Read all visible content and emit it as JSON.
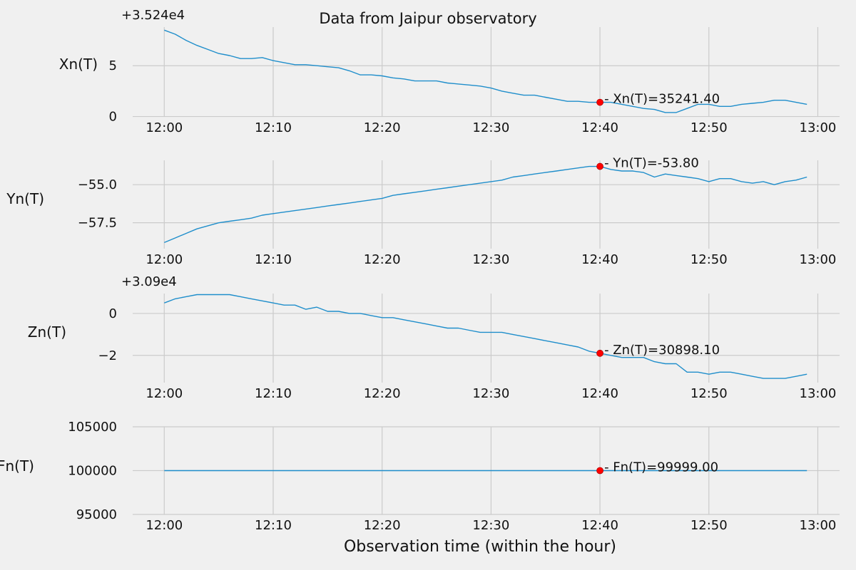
{
  "chart_data": {
    "type": "line",
    "title": "Data from  Jaipur observatory",
    "xlabel": "Observation time (within the hour)",
    "x_ticks": [
      "12:00",
      "12:10",
      "12:20",
      "12:30",
      "12:40",
      "12:50",
      "13:00"
    ],
    "x_minutes": [
      0,
      1,
      2,
      3,
      4,
      5,
      6,
      7,
      8,
      9,
      10,
      11,
      12,
      13,
      14,
      15,
      16,
      17,
      18,
      19,
      20,
      21,
      22,
      23,
      24,
      25,
      26,
      27,
      28,
      29,
      30,
      31,
      32,
      33,
      34,
      35,
      36,
      37,
      38,
      39,
      40,
      41,
      42,
      43,
      44,
      45,
      46,
      47,
      48,
      49,
      50,
      51,
      52,
      53,
      54,
      55,
      56,
      57,
      58,
      59
    ],
    "xlim_minutes": [
      -2.9,
      62
    ],
    "grid": true,
    "colors": {
      "line": "#1f8ecb",
      "marker": "#ff0000",
      "grid": "#cbcbcb",
      "background": "#f0f0f0"
    },
    "panels": [
      {
        "ylabel": "Xn(T)",
        "offset_text": "+3.524e4",
        "offset": 35240,
        "y_ticks": [
          0,
          5
        ],
        "y_tick_labels": [
          "0",
          "5"
        ],
        "ylim": [
          -0.03,
          8.8
        ],
        "values": [
          35248.5,
          35248.1,
          35247.5,
          35247.0,
          35246.6,
          35246.2,
          35246.0,
          35245.7,
          35245.7,
          35245.8,
          35245.5,
          35245.3,
          35245.1,
          35245.1,
          35245.0,
          35244.9,
          35244.8,
          35244.5,
          35244.1,
          35244.1,
          35244.0,
          35243.8,
          35243.7,
          35243.5,
          35243.5,
          35243.5,
          35243.3,
          35243.2,
          35243.1,
          35243.0,
          35242.8,
          35242.5,
          35242.3,
          35242.1,
          35242.1,
          35241.9,
          35241.7,
          35241.5,
          35241.5,
          35241.4,
          35241.4,
          35241.4,
          35241.2,
          35241.0,
          35240.8,
          35240.7,
          35240.4,
          35240.4,
          35240.8,
          35241.2,
          35241.2,
          35241.0,
          35241.0,
          35241.2,
          35241.3,
          35241.4,
          35241.6,
          35241.6,
          35241.4,
          35241.2
        ],
        "highlight": {
          "x": "12:40",
          "value": 35241.4,
          "label": "- Xn(T)=35241.40"
        }
      },
      {
        "ylabel": "Yn(T)",
        "offset_text": "",
        "offset": 0,
        "y_ticks": [
          -57.5,
          -55.0
        ],
        "y_tick_labels": [
          "−57.5",
          "−55.0"
        ],
        "ylim": [
          -59.2,
          -53.4
        ],
        "values": [
          -58.8,
          -58.5,
          -58.2,
          -57.9,
          -57.7,
          -57.5,
          -57.4,
          -57.3,
          -57.2,
          -57.0,
          -56.9,
          -56.8,
          -56.7,
          -56.6,
          -56.5,
          -56.4,
          -56.3,
          -56.2,
          -56.1,
          -56.0,
          -55.9,
          -55.7,
          -55.6,
          -55.5,
          -55.4,
          -55.3,
          -55.2,
          -55.1,
          -55.0,
          -54.9,
          -54.8,
          -54.7,
          -54.5,
          -54.4,
          -54.3,
          -54.2,
          -54.1,
          -54.0,
          -53.9,
          -53.8,
          -53.8,
          -54.0,
          -54.1,
          -54.1,
          -54.2,
          -54.5,
          -54.3,
          -54.4,
          -54.5,
          -54.6,
          -54.8,
          -54.6,
          -54.6,
          -54.8,
          -54.9,
          -54.8,
          -55.0,
          -54.8,
          -54.7,
          -54.5
        ],
        "highlight": {
          "x": "12:40",
          "value": -53.8,
          "label": "- Yn(T)=-53.80"
        }
      },
      {
        "ylabel": "Zn(T)",
        "offset_text": "+3.09e4",
        "offset": 30900,
        "y_ticks": [
          -2,
          0
        ],
        "y_tick_labels": [
          "−2",
          "0"
        ],
        "ylim": [
          -3.3,
          0.95
        ],
        "values": [
          30900.5,
          30900.7,
          30900.8,
          30900.9,
          30900.9,
          30900.9,
          30900.9,
          30900.8,
          30900.7,
          30900.6,
          30900.5,
          30900.4,
          30900.4,
          30900.2,
          30900.3,
          30900.1,
          30900.1,
          30900.0,
          30900.0,
          30899.9,
          30899.8,
          30899.8,
          30899.7,
          30899.6,
          30899.5,
          30899.4,
          30899.3,
          30899.3,
          30899.2,
          30899.1,
          30899.1,
          30899.1,
          30899.0,
          30898.9,
          30898.8,
          30898.7,
          30898.6,
          30898.5,
          30898.4,
          30898.2,
          30898.1,
          30898.0,
          30897.9,
          30897.9,
          30897.9,
          30897.7,
          30897.6,
          30897.6,
          30897.2,
          30897.2,
          30897.1,
          30897.2,
          30897.2,
          30897.1,
          30897.0,
          30896.9,
          30896.9,
          30896.9,
          30897.0,
          30897.1
        ],
        "highlight": {
          "x": "12:40",
          "value": 30898.1,
          "label": "- Zn(T)=30898.10"
        }
      },
      {
        "ylabel": "Fn(T)",
        "offset_text": "",
        "offset": 0,
        "y_ticks": [
          95000,
          100000,
          105000
        ],
        "y_tick_labels": [
          "95000",
          "100000",
          "105000"
        ],
        "ylim": [
          95000,
          105000
        ],
        "values": [
          99999,
          99999,
          99999,
          99999,
          99999,
          99999,
          99999,
          99999,
          99999,
          99999,
          99999,
          99999,
          99999,
          99999,
          99999,
          99999,
          99999,
          99999,
          99999,
          99999,
          99999,
          99999,
          99999,
          99999,
          99999,
          99999,
          99999,
          99999,
          99999,
          99999,
          99999,
          99999,
          99999,
          99999,
          99999,
          99999,
          99999,
          99999,
          99999,
          99999,
          99999,
          99999,
          99999,
          99999,
          99999,
          99999,
          99999,
          99999,
          99999,
          99999,
          99999,
          99999,
          99999,
          99999,
          99999,
          99999,
          99999,
          99999,
          99999,
          99999
        ],
        "highlight": {
          "x": "12:40",
          "value": 99999.0,
          "label": "- Fn(T)=99999.00"
        }
      }
    ]
  }
}
